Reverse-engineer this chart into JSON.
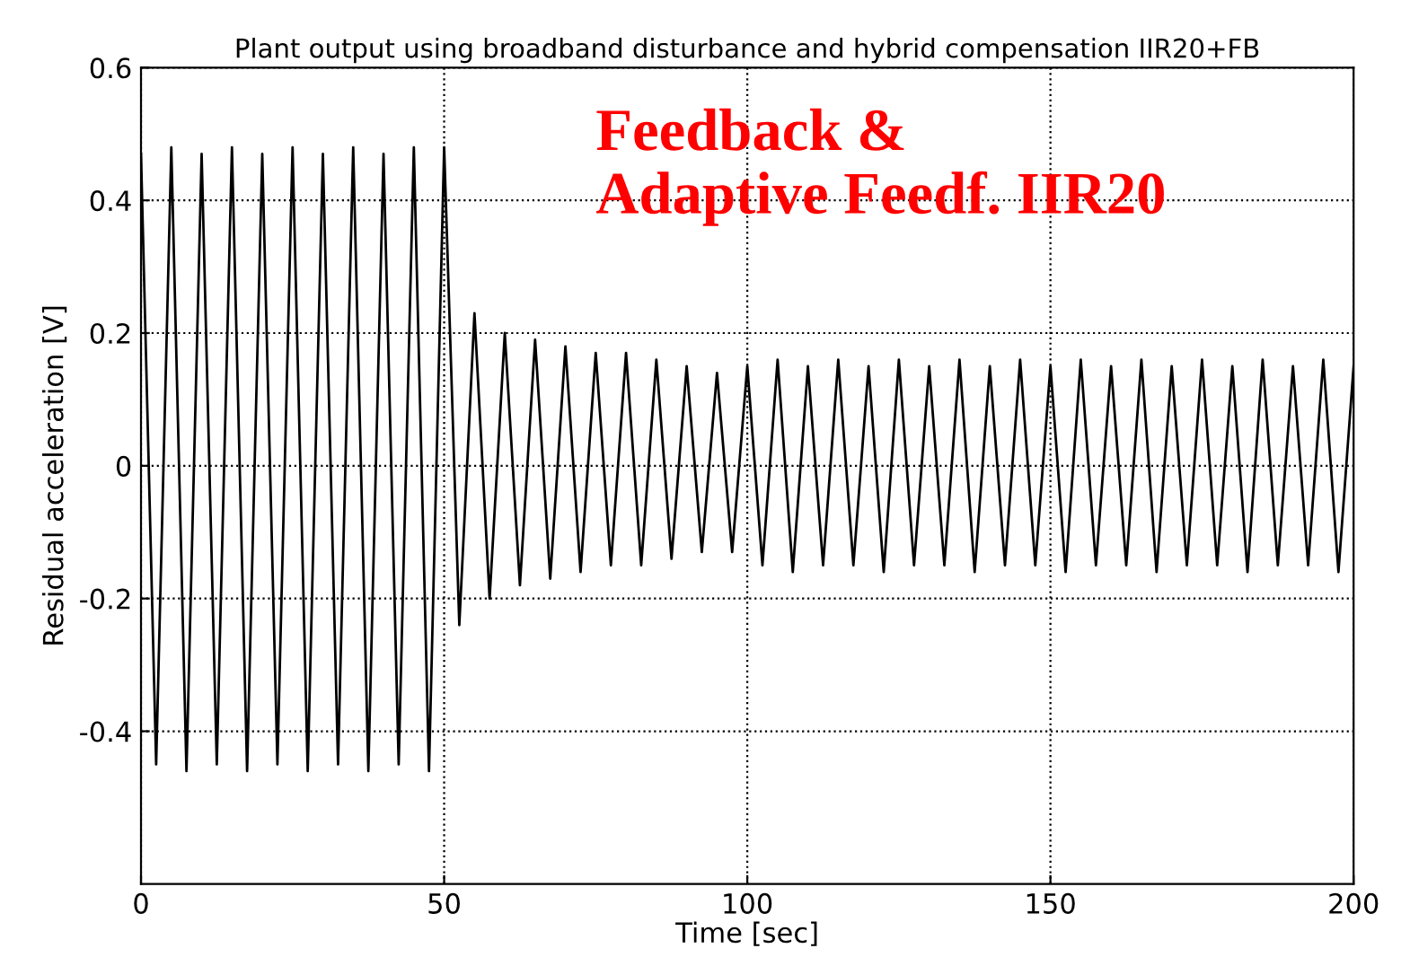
{
  "chart_data": {
    "type": "line",
    "title": "Plant output using broadband disturbance and hybrid compensation IIR20+FB",
    "xlabel": "Time [sec]",
    "ylabel": "Residual acceleration [V]",
    "annotations": [
      "Feedback &\nAdaptive Feedf. IIR20"
    ],
    "x": [
      0,
      2.5,
      5,
      7.5,
      10,
      12.5,
      15,
      17.5,
      20,
      22.5,
      25,
      27.5,
      30,
      32.5,
      35,
      37.5,
      40,
      42.5,
      45,
      47.5,
      50,
      52.5,
      55,
      57.5,
      60,
      62.5,
      65,
      67.5,
      70,
      72.5,
      75,
      77.5,
      80,
      82.5,
      85,
      87.5,
      90,
      92.5,
      95,
      97.5,
      100,
      102.5,
      105,
      107.5,
      110,
      112.5,
      115,
      117.5,
      120,
      122.5,
      125,
      127.5,
      130,
      132.5,
      135,
      137.5,
      140,
      142.5,
      145,
      147.5,
      150,
      152.5,
      155,
      157.5,
      160,
      162.5,
      165,
      167.5,
      170,
      172.5,
      175,
      177.5,
      180,
      182.5,
      185,
      187.5,
      190,
      192.5,
      195,
      197.5,
      200
    ],
    "series": [
      {
        "color": "#000000",
        "values": [
          0.47,
          -0.45,
          0.48,
          -0.46,
          0.47,
          -0.45,
          0.48,
          -0.46,
          0.47,
          -0.45,
          0.48,
          -0.46,
          0.47,
          -0.45,
          0.48,
          -0.46,
          0.47,
          -0.45,
          0.48,
          -0.46,
          0.48,
          -0.24,
          0.23,
          -0.2,
          0.2,
          -0.18,
          0.19,
          -0.17,
          0.18,
          -0.16,
          0.17,
          -0.15,
          0.17,
          -0.15,
          0.16,
          -0.14,
          0.15,
          -0.13,
          0.14,
          -0.13,
          0.15,
          -0.15,
          0.16,
          -0.16,
          0.15,
          -0.15,
          0.16,
          -0.15,
          0.15,
          -0.16,
          0.16,
          -0.15,
          0.15,
          -0.15,
          0.16,
          -0.16,
          0.15,
          -0.15,
          0.16,
          -0.15,
          0.15,
          -0.16,
          0.16,
          -0.15,
          0.15,
          -0.15,
          0.16,
          -0.16,
          0.15,
          -0.15,
          0.16,
          -0.15,
          0.15,
          -0.16,
          0.16,
          -0.15,
          0.15,
          -0.15,
          0.16,
          -0.16,
          0.15
        ]
      }
    ],
    "xlim": [
      0,
      200
    ],
    "xticks": [
      0,
      50,
      100,
      150,
      200
    ],
    "ylim": [
      -0.63,
      0.6
    ],
    "yticks": [
      -0.4,
      -0.2,
      0,
      0.2,
      0.4,
      0.6
    ],
    "grid": true,
    "line_style": "solid",
    "marker": "none"
  }
}
